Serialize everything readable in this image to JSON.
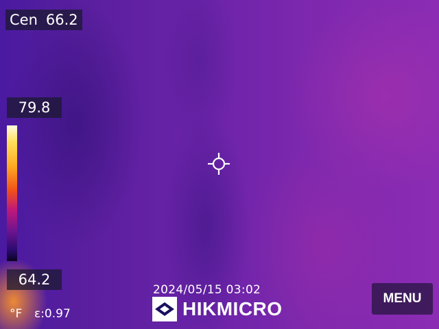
{
  "center_readout": {
    "label": "Cen",
    "value": "66.2"
  },
  "scale": {
    "max": "79.8",
    "min": "64.2",
    "palette": "ironbow"
  },
  "footer": {
    "unit": "°F",
    "emissivity": "ε:0.97",
    "timestamp": "2024/05/15 03:02",
    "brand": "HIKMICRO",
    "menu_label": "MENU"
  },
  "icons": {
    "crosshair": "crosshair-icon",
    "brand_logo": "hikmicro-logo-icon"
  },
  "colors": {
    "overlay_box": "#19192d",
    "text": "#ffffff"
  }
}
